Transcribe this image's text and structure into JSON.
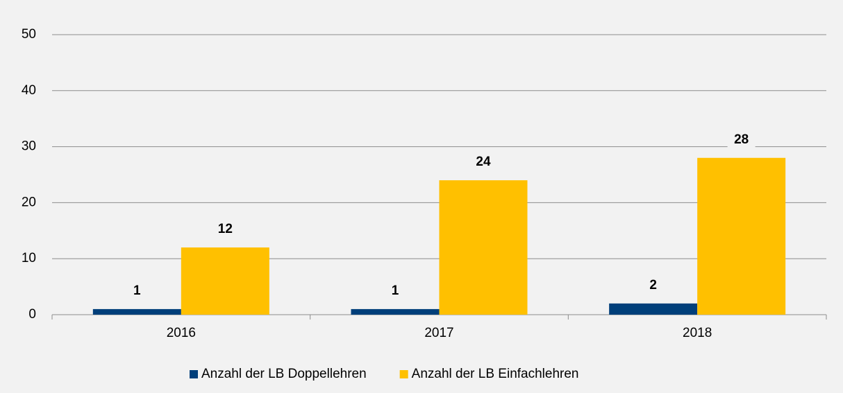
{
  "chart_data": {
    "type": "bar",
    "categories": [
      "2016",
      "2017",
      "2018"
    ],
    "series": [
      {
        "name": "Anzahl der LB Doppellehren",
        "color": "#003f7a",
        "values": [
          1,
          1,
          2
        ]
      },
      {
        "name": "Anzahl der LB Einfachlehren",
        "color": "#ffc000",
        "values": [
          12,
          24,
          28
        ]
      }
    ],
    "ylim": [
      0,
      50
    ],
    "yticks": [
      0,
      10,
      20,
      30,
      40,
      50
    ],
    "grid": true,
    "legend": "bottom"
  }
}
